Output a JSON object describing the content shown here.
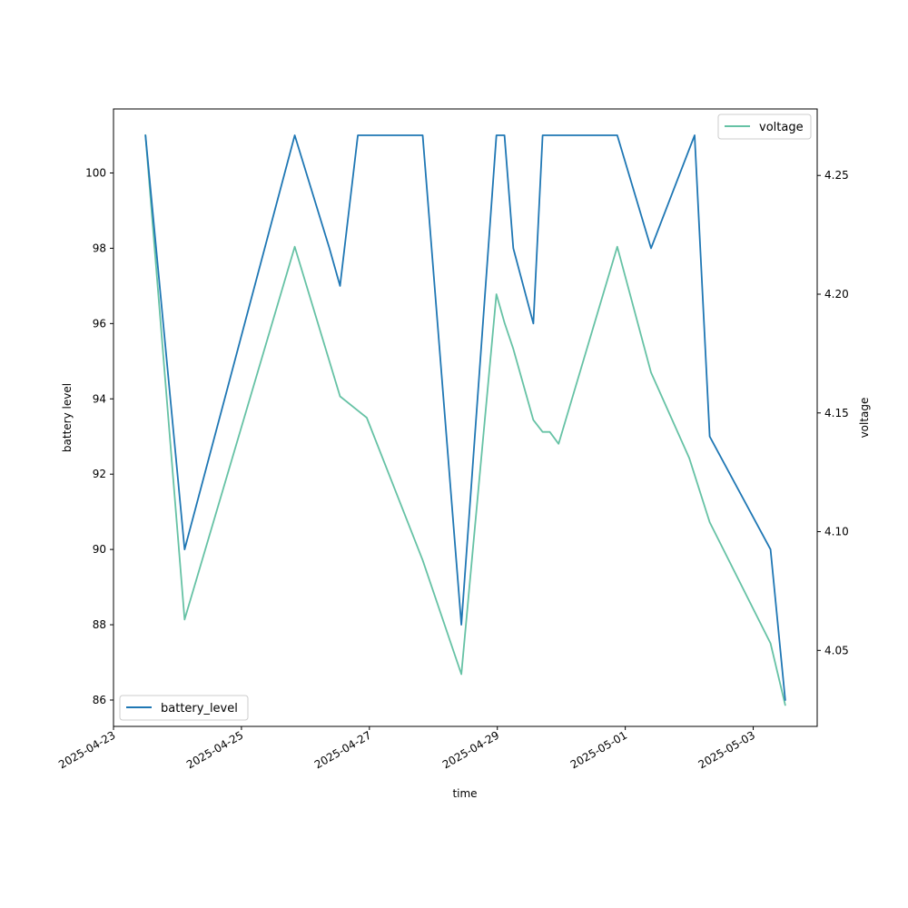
{
  "chart_data": {
    "type": "line",
    "title": "",
    "xlabel": "time",
    "ylabel_left": "battery level",
    "ylabel_right": "voltage",
    "x_ticks": [
      "2025-04-23",
      "2025-04-25",
      "2025-04-27",
      "2025-04-29",
      "2025-05-01",
      "2025-05-03"
    ],
    "xlim": [
      "2025-04-23",
      "2025-05-04T00:00"
    ],
    "ylim_left": [
      85.3,
      101.7
    ],
    "ylim_right": [
      4.018,
      4.278
    ],
    "y_ticks_left": [
      86,
      88,
      90,
      92,
      94,
      96,
      98,
      100
    ],
    "y_ticks_right": [
      4.05,
      4.1,
      4.15,
      4.2,
      4.25
    ],
    "grid": false,
    "series": [
      {
        "name": "battery_level",
        "axis": "left",
        "color": "#1f77b4",
        "legend": "bottom-left",
        "points": [
          [
            "2025-04-23T12:00",
            101
          ],
          [
            "2025-04-24T02:40",
            90
          ],
          [
            "2025-04-25T20:00",
            101
          ],
          [
            "2025-04-26T09:00",
            98
          ],
          [
            "2025-04-26T13:00",
            97
          ],
          [
            "2025-04-26T19:40",
            101
          ],
          [
            "2025-04-27T20:00",
            101
          ],
          [
            "2025-04-28T10:30",
            88
          ],
          [
            "2025-04-28T23:40",
            101
          ],
          [
            "2025-04-29T02:40",
            101
          ],
          [
            "2025-04-29T06:00",
            98
          ],
          [
            "2025-04-29T13:30",
            96
          ],
          [
            "2025-04-29T17:00",
            101
          ],
          [
            "2025-04-30T21:00",
            101
          ],
          [
            "2025-05-01T09:40",
            98
          ],
          [
            "2025-05-02T02:00",
            101
          ],
          [
            "2025-05-02T07:40",
            93
          ],
          [
            "2025-05-03T06:30",
            90
          ],
          [
            "2025-05-03T12:00",
            86
          ]
        ]
      },
      {
        "name": "voltage",
        "axis": "right",
        "color": "#66c2a5",
        "legend": "top-right",
        "points": [
          [
            "2025-04-23T12:00",
            4.267
          ],
          [
            "2025-04-24T02:40",
            4.063
          ],
          [
            "2025-04-25T20:00",
            4.22
          ],
          [
            "2025-04-26T13:00",
            4.157
          ],
          [
            "2025-04-26T19:40",
            4.151
          ],
          [
            "2025-04-26T23:00",
            4.148
          ],
          [
            "2025-04-27T20:00",
            4.088
          ],
          [
            "2025-04-28T10:30",
            4.04
          ],
          [
            "2025-04-28T23:40",
            4.2
          ],
          [
            "2025-04-29T02:40",
            4.188
          ],
          [
            "2025-04-29T06:00",
            4.177
          ],
          [
            "2025-04-29T13:30",
            4.147
          ],
          [
            "2025-04-29T17:00",
            4.142
          ],
          [
            "2025-04-29T19:40",
            4.142
          ],
          [
            "2025-04-29T23:00",
            4.137
          ],
          [
            "2025-04-30T21:00",
            4.22
          ],
          [
            "2025-05-01T09:40",
            4.167
          ],
          [
            "2025-05-02T00:00",
            4.131
          ],
          [
            "2025-05-02T07:40",
            4.104
          ],
          [
            "2025-05-03T06:30",
            4.053
          ],
          [
            "2025-05-03T12:00",
            4.027
          ]
        ]
      }
    ]
  }
}
